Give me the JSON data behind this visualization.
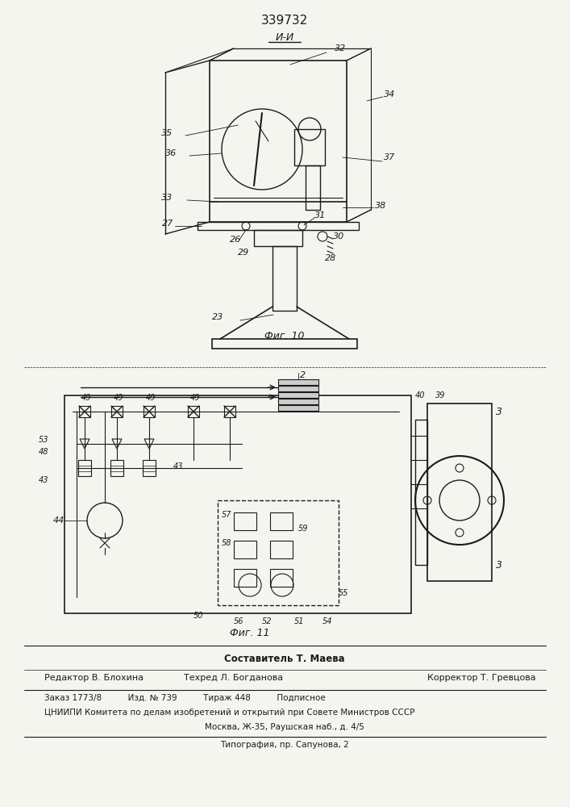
{
  "patent_number": "339732",
  "section_label": "И-И",
  "fig10_caption": "Фиг. 10",
  "fig11_caption": "Фиг. 11",
  "composer": "Составитель Т. Маева",
  "editor_label": "Редактор В. Блохина",
  "techred_label": "Техред Л. Богданова",
  "corrector_label": "Корректор Т. Гревцова",
  "order_line": "Заказ 1773/8          Изд. № 739          Тираж 448          Подписное",
  "cniipi_line": "ЦНИИПИ Комитета по делам изобретений и открытий при Совете Министров СССР",
  "moscow_line": "Москва, Ж-35, Раушская наб., д. 4/5",
  "typography_line": "Типография, пр. Сапунова, 2",
  "bg_color": "#f5f5f0",
  "line_color": "#1a1a1a",
  "text_color": "#1a1a1a"
}
